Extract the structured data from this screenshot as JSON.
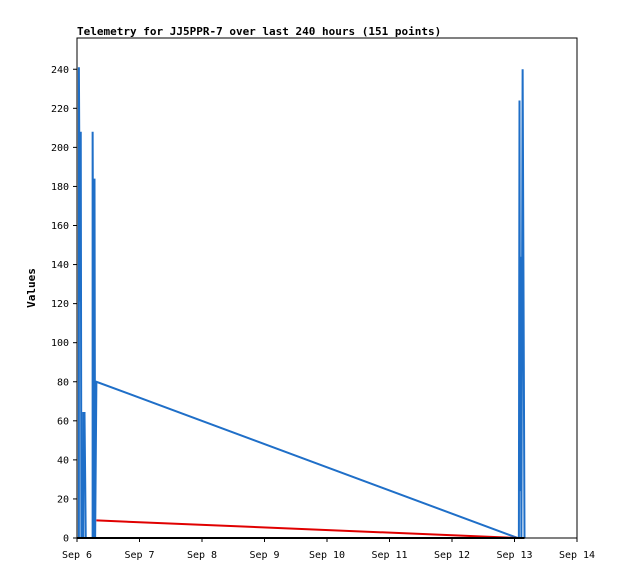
{
  "chart_data": {
    "type": "line",
    "title": "Telemetry for JJ5PPR-7 over last 240 hours (151 points)",
    "xlabel": "",
    "ylabel": "Values",
    "xlim": [
      0,
      8
    ],
    "ylim": [
      0,
      256
    ],
    "x_ticks": [
      {
        "v": 0,
        "label": "Sep 6"
      },
      {
        "v": 1,
        "label": "Sep 7"
      },
      {
        "v": 2,
        "label": "Sep 8"
      },
      {
        "v": 3,
        "label": "Sep 9"
      },
      {
        "v": 4,
        "label": "Sep 10"
      },
      {
        "v": 5,
        "label": "Sep 11"
      },
      {
        "v": 6,
        "label": "Sep 12"
      },
      {
        "v": 7,
        "label": "Sep 13"
      },
      {
        "v": 8,
        "label": "Sep 14"
      }
    ],
    "y_ticks": [
      0,
      20,
      40,
      60,
      80,
      100,
      120,
      140,
      160,
      180,
      200,
      220,
      240
    ],
    "series": [
      {
        "color": "#1f6fc8",
        "points": [
          [
            0.0,
            0
          ],
          [
            0.03,
            0
          ],
          [
            0.03,
            241
          ],
          [
            0.05,
            121
          ],
          [
            0.06,
            208
          ],
          [
            0.07,
            0
          ],
          [
            0.1,
            0
          ],
          [
            0.1,
            64
          ],
          [
            0.12,
            64
          ],
          [
            0.13,
            32
          ],
          [
            0.14,
            0
          ],
          [
            0.25,
            0
          ],
          [
            0.25,
            208
          ],
          [
            0.27,
            0
          ],
          [
            0.28,
            184
          ],
          [
            0.29,
            0
          ],
          [
            0.31,
            80
          ],
          [
            7.05,
            0
          ],
          [
            7.07,
            0
          ],
          [
            7.08,
            224
          ],
          [
            7.09,
            24
          ],
          [
            7.1,
            144
          ],
          [
            7.11,
            0
          ],
          [
            7.13,
            240
          ],
          [
            7.15,
            80
          ],
          [
            7.16,
            0
          ]
        ]
      },
      {
        "color": "#e00000",
        "points": [
          [
            0.31,
            9
          ],
          [
            7.05,
            0
          ]
        ]
      },
      {
        "color": "#000000",
        "points": [
          [
            0.0,
            0
          ],
          [
            7.16,
            0
          ]
        ]
      }
    ]
  }
}
